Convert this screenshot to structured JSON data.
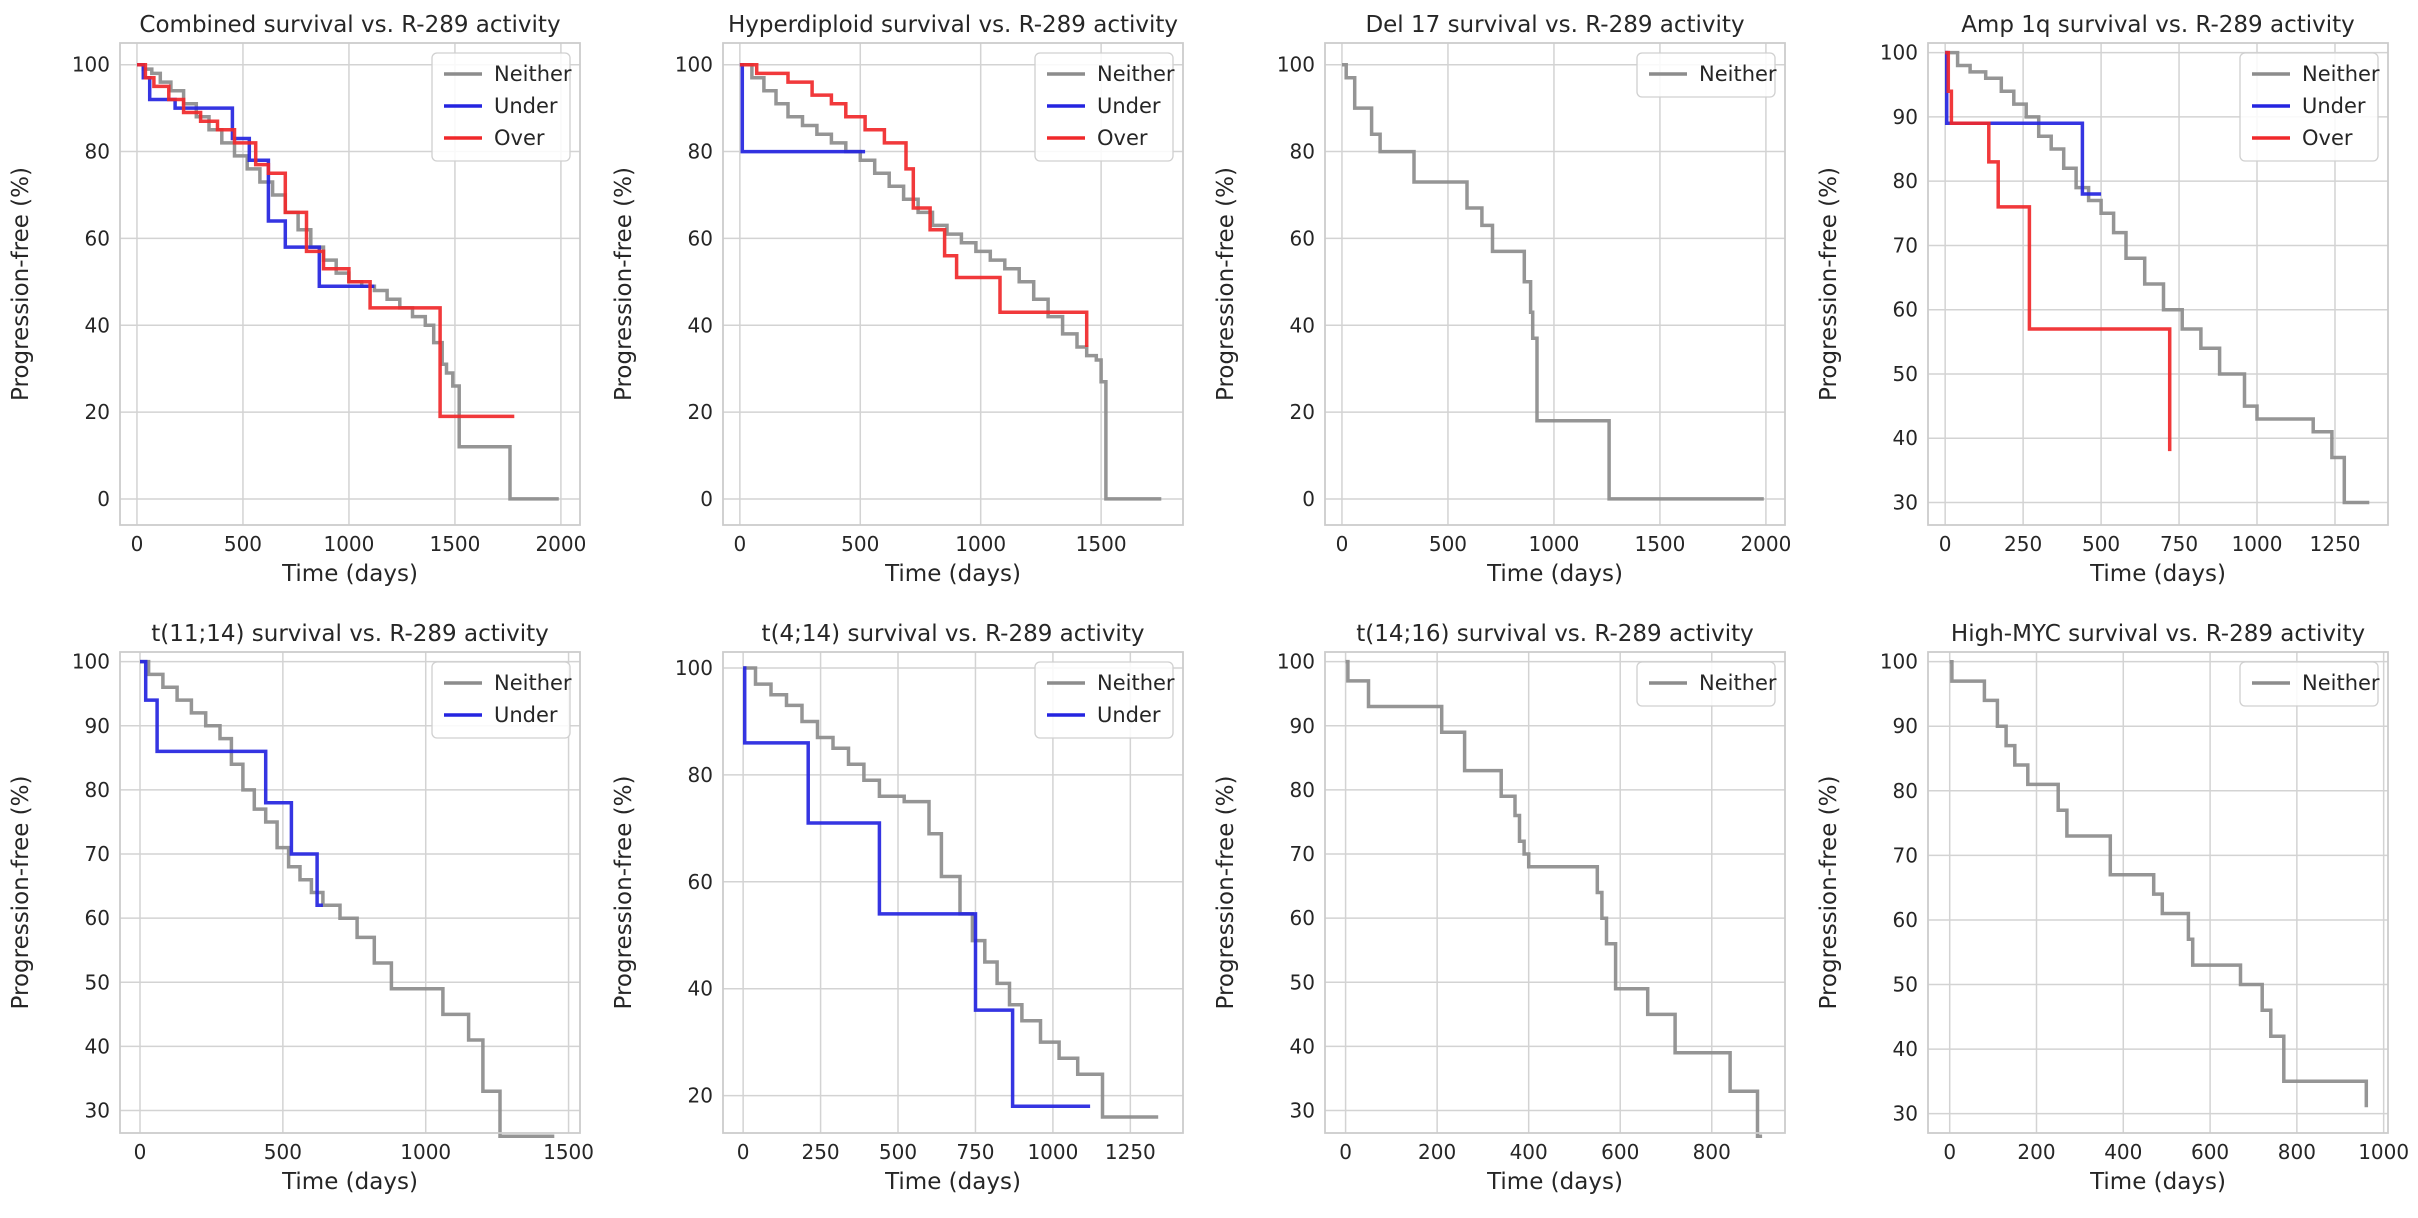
{
  "chart_data": [
    {
      "type": "line",
      "title": "Combined survival vs. R-289 activity",
      "xlabel": "Time (days)",
      "ylabel": "Progression-free (%)",
      "xlim": [
        -80,
        2090
      ],
      "ylim": [
        -6,
        105
      ],
      "xticks": [
        0,
        500,
        1000,
        1500,
        2000
      ],
      "yticks": [
        0,
        20,
        40,
        60,
        80,
        100
      ],
      "grid": true,
      "legend": "top-right",
      "series": [
        {
          "name": "Neither",
          "color": "#8c8c8c",
          "x": [
            0,
            30,
            70,
            110,
            160,
            220,
            280,
            340,
            400,
            460,
            520,
            580,
            640,
            700,
            760,
            820,
            880,
            940,
            1000,
            1060,
            1120,
            1180,
            1240,
            1300,
            1360,
            1400,
            1440,
            1460,
            1490,
            1520,
            1760,
            1990
          ],
          "y": [
            100,
            99,
            98,
            96,
            94,
            91,
            88,
            85,
            82,
            79,
            76,
            73,
            70,
            66,
            62,
            58,
            55,
            52,
            50,
            49,
            48,
            46,
            44,
            42,
            40,
            36,
            31,
            29,
            26,
            12,
            0,
            0
          ]
        },
        {
          "name": "Under",
          "color": "#2424e0",
          "x": [
            0,
            30,
            60,
            180,
            450,
            530,
            620,
            700,
            860,
            1120
          ],
          "y": [
            100,
            97,
            92,
            90,
            83,
            78,
            64,
            58,
            49,
            49
          ]
        },
        {
          "name": "Over",
          "color": "#f0282a",
          "x": [
            0,
            40,
            80,
            150,
            220,
            300,
            380,
            460,
            560,
            620,
            700,
            800,
            880,
            1000,
            1100,
            1430,
            1780
          ],
          "y": [
            100,
            97,
            95,
            92,
            89,
            87,
            85,
            82,
            77,
            75,
            66,
            57,
            53,
            50,
            44,
            19,
            19
          ]
        }
      ]
    },
    {
      "type": "line",
      "title": "Hyperdiploid survival vs. R-289 activity",
      "xlabel": "Time (days)",
      "ylabel": "Progression-free (%)",
      "xlim": [
        -70,
        1840
      ],
      "ylim": [
        -6,
        105
      ],
      "xticks": [
        0,
        500,
        1000,
        1500
      ],
      "yticks": [
        0,
        20,
        40,
        60,
        80,
        100
      ],
      "grid": true,
      "legend": "top-right",
      "series": [
        {
          "name": "Neither",
          "color": "#8c8c8c",
          "x": [
            0,
            50,
            100,
            150,
            200,
            260,
            320,
            380,
            440,
            500,
            560,
            620,
            680,
            740,
            800,
            860,
            920,
            980,
            1040,
            1100,
            1160,
            1220,
            1280,
            1340,
            1400,
            1440,
            1480,
            1500,
            1520,
            1750
          ],
          "y": [
            100,
            97,
            94,
            91,
            88,
            86,
            84,
            82,
            80,
            78,
            75,
            72,
            69,
            66,
            63,
            61,
            59,
            57,
            55,
            53,
            50,
            46,
            42,
            38,
            35,
            33,
            32,
            27,
            0,
            0
          ]
        },
        {
          "name": "Under",
          "color": "#2424e0",
          "x": [
            0,
            10,
            520
          ],
          "y": [
            100,
            80,
            80
          ]
        },
        {
          "name": "Over",
          "color": "#f0282a",
          "x": [
            0,
            70,
            200,
            300,
            380,
            440,
            520,
            600,
            690,
            720,
            790,
            850,
            900,
            1080,
            1440
          ],
          "y": [
            100,
            98,
            96,
            93,
            91,
            88,
            85,
            82,
            76,
            67,
            62,
            56,
            51,
            43,
            35
          ]
        }
      ]
    },
    {
      "type": "line",
      "title": "Del 17 survival vs. R-289 activity",
      "xlabel": "Time (days)",
      "ylabel": "Progression-free (%)",
      "xlim": [
        -80,
        2090
      ],
      "ylim": [
        -6,
        105
      ],
      "xticks": [
        0,
        500,
        1000,
        1500,
        2000
      ],
      "yticks": [
        0,
        20,
        40,
        60,
        80,
        100
      ],
      "grid": true,
      "legend": "top-right",
      "series": [
        {
          "name": "Neither",
          "color": "#8c8c8c",
          "x": [
            0,
            20,
            60,
            140,
            180,
            340,
            590,
            660,
            710,
            860,
            890,
            900,
            920,
            1260,
            1990
          ],
          "y": [
            100,
            97,
            90,
            84,
            80,
            73,
            67,
            63,
            57,
            50,
            43,
            37,
            18,
            0,
            0
          ]
        }
      ]
    },
    {
      "type": "line",
      "title": "Amp 1q survival vs. R-289 activity",
      "xlabel": "Time (days)",
      "ylabel": "Progression-free (%)",
      "xlim": [
        -55,
        1420
      ],
      "ylim": [
        26.5,
        101.5
      ],
      "xticks": [
        0,
        250,
        500,
        750,
        1000,
        1250
      ],
      "yticks": [
        30,
        40,
        50,
        60,
        70,
        80,
        90,
        100
      ],
      "grid": true,
      "legend": "top-right",
      "series": [
        {
          "name": "Neither",
          "color": "#8c8c8c",
          "x": [
            0,
            40,
            80,
            130,
            180,
            220,
            260,
            300,
            340,
            380,
            420,
            460,
            500,
            540,
            580,
            640,
            700,
            760,
            820,
            880,
            960,
            1000,
            1100,
            1180,
            1240,
            1280,
            1360
          ],
          "y": [
            100,
            98,
            97,
            96,
            94,
            92,
            90,
            87,
            85,
            82,
            79,
            77,
            75,
            72,
            68,
            64,
            60,
            57,
            54,
            50,
            45,
            43,
            43,
            41,
            37,
            30,
            30
          ]
        },
        {
          "name": "Under",
          "color": "#2424e0",
          "x": [
            0,
            5,
            440,
            500
          ],
          "y": [
            100,
            89,
            78,
            78
          ]
        },
        {
          "name": "Over",
          "color": "#f0282a",
          "x": [
            0,
            10,
            20,
            140,
            170,
            270,
            720
          ],
          "y": [
            100,
            94,
            89,
            83,
            76,
            57,
            38
          ]
        }
      ]
    },
    {
      "type": "line",
      "title": "t(11;14) survival vs. R-289 activity",
      "xlabel": "Time (days)",
      "ylabel": "Progression-free (%)",
      "xlim": [
        -70,
        1540
      ],
      "ylim": [
        26.5,
        101.5
      ],
      "xticks": [
        0,
        500,
        1000,
        1500
      ],
      "yticks": [
        30,
        40,
        50,
        60,
        70,
        80,
        90,
        100
      ],
      "grid": true,
      "legend": "top-right",
      "series": [
        {
          "name": "Neither",
          "color": "#8c8c8c",
          "x": [
            0,
            30,
            80,
            130,
            180,
            230,
            280,
            320,
            360,
            400,
            440,
            480,
            520,
            560,
            600,
            640,
            700,
            760,
            820,
            880,
            1060,
            1150,
            1200,
            1260,
            1450
          ],
          "y": [
            100,
            98,
            96,
            94,
            92,
            90,
            88,
            84,
            80,
            77,
            75,
            71,
            68,
            66,
            64,
            62,
            60,
            57,
            53,
            49,
            45,
            41,
            33,
            26,
            26
          ]
        },
        {
          "name": "Under",
          "color": "#2424e0",
          "x": [
            0,
            20,
            60,
            440,
            530,
            620,
            640
          ],
          "y": [
            100,
            94,
            86,
            78,
            70,
            62,
            62
          ]
        }
      ]
    },
    {
      "type": "line",
      "title": "t(4;14) survival vs. R-289 activity",
      "xlabel": "Time (days)",
      "ylabel": "Progression-free (%)",
      "xlim": [
        -65,
        1420
      ],
      "ylim": [
        13,
        103
      ],
      "xticks": [
        0,
        250,
        500,
        750,
        1000,
        1250
      ],
      "yticks": [
        20,
        40,
        60,
        80,
        100
      ],
      "grid": true,
      "legend": "top-right",
      "series": [
        {
          "name": "Neither",
          "color": "#8c8c8c",
          "x": [
            0,
            40,
            90,
            140,
            190,
            240,
            290,
            340,
            390,
            440,
            520,
            600,
            640,
            700,
            740,
            780,
            820,
            860,
            900,
            960,
            1020,
            1080,
            1160,
            1340
          ],
          "y": [
            100,
            97,
            95,
            93,
            90,
            87,
            85,
            82,
            79,
            76,
            75,
            69,
            61,
            54,
            49,
            45,
            41,
            37,
            34,
            30,
            27,
            24,
            16,
            16
          ]
        },
        {
          "name": "Under",
          "color": "#2424e0",
          "x": [
            0,
            5,
            210,
            440,
            750,
            870,
            1120
          ],
          "y": [
            100,
            86,
            71,
            54,
            36,
            18,
            18
          ]
        }
      ]
    },
    {
      "type": "line",
      "title": "t(14;16) survival vs. R-289 activity",
      "xlabel": "Time (days)",
      "ylabel": "Progression-free (%)",
      "xlim": [
        -45,
        960
      ],
      "ylim": [
        26.5,
        101.5
      ],
      "xticks": [
        0,
        200,
        400,
        600,
        800
      ],
      "yticks": [
        30,
        40,
        50,
        60,
        70,
        80,
        90,
        100
      ],
      "grid": true,
      "legend": "top-right",
      "series": [
        {
          "name": "Neither",
          "color": "#8c8c8c",
          "x": [
            0,
            5,
            50,
            210,
            260,
            340,
            370,
            380,
            390,
            400,
            550,
            560,
            570,
            590,
            660,
            720,
            840,
            900,
            910
          ],
          "y": [
            100,
            97,
            93,
            89,
            83,
            79,
            76,
            72,
            70,
            68,
            64,
            60,
            56,
            49,
            45,
            39,
            33,
            26,
            26
          ]
        }
      ]
    },
    {
      "type": "line",
      "title": "High-MYC survival vs. R-289 activity",
      "xlabel": "Time (days)",
      "ylabel": "Progression-free (%)",
      "xlim": [
        -50,
        1010
      ],
      "ylim": [
        27,
        101.5
      ],
      "xticks": [
        0,
        200,
        400,
        600,
        800,
        1000
      ],
      "yticks": [
        30,
        40,
        50,
        60,
        70,
        80,
        90,
        100
      ],
      "grid": true,
      "legend": "top-right",
      "series": [
        {
          "name": "Neither",
          "color": "#8c8c8c",
          "x": [
            0,
            5,
            80,
            110,
            130,
            150,
            180,
            250,
            270,
            370,
            470,
            490,
            550,
            560,
            670,
            720,
            740,
            770,
            960
          ],
          "y": [
            100,
            97,
            94,
            90,
            87,
            84,
            81,
            77,
            73,
            67,
            64,
            61,
            57,
            53,
            50,
            46,
            42,
            35,
            31
          ]
        }
      ]
    }
  ]
}
